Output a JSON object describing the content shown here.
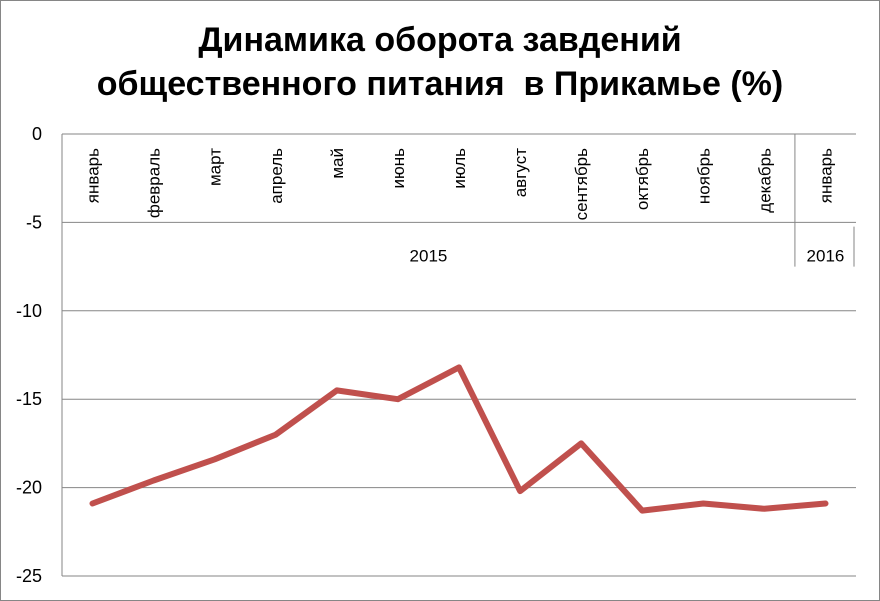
{
  "chart_data": {
    "type": "line",
    "title_lines": [
      "Динамика оборота завдений",
      "общественного питания  в Прикамье (%)"
    ],
    "categories": [
      "январь",
      "февраль",
      "март",
      "апрель",
      "май",
      "июнь",
      "июль",
      "август",
      "сентябрь",
      "октябрь",
      "ноябрь",
      "декабрь",
      "январь"
    ],
    "groups": [
      {
        "label": "2015",
        "count": 12
      },
      {
        "label": "2016",
        "count": 1
      }
    ],
    "series": [
      {
        "values": [
          -20.9,
          -19.6,
          -18.4,
          -17.0,
          -14.5,
          -15.0,
          -13.2,
          -20.2,
          -17.5,
          -21.3,
          -20.9,
          -21.2,
          -20.9
        ],
        "color": "#c0504d"
      }
    ],
    "ylim": [
      -25,
      0
    ],
    "yticks": [
      0,
      -5,
      -10,
      -15,
      -20,
      -25
    ],
    "grid": true,
    "legend": "none"
  }
}
